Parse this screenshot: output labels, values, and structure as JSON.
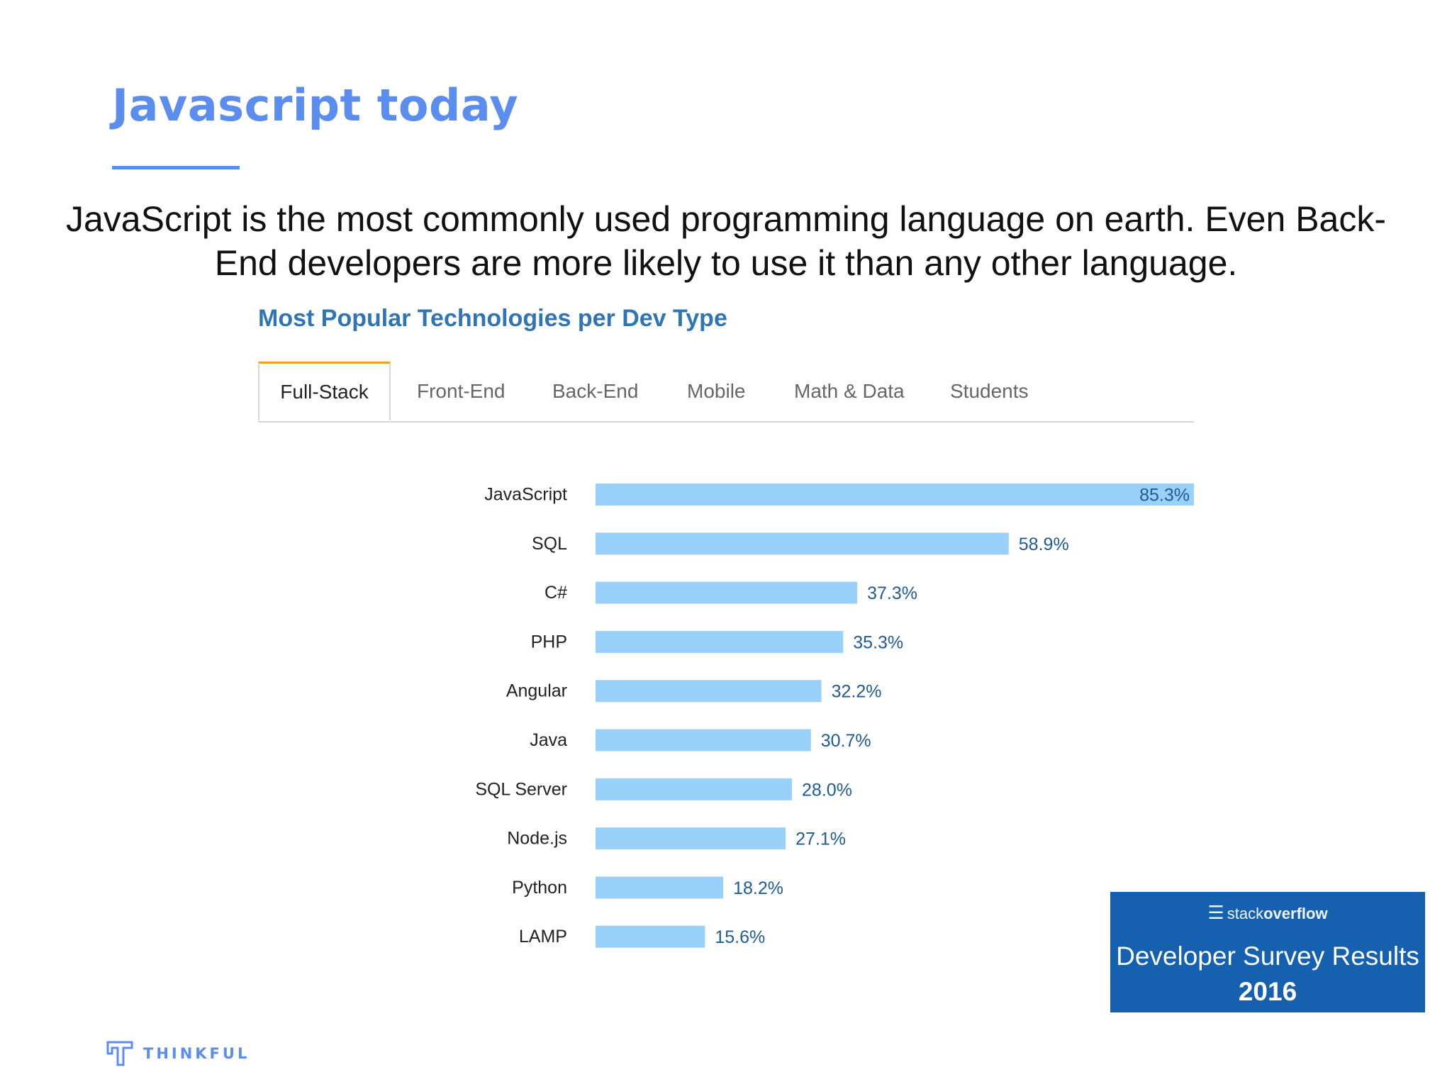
{
  "slide": {
    "title": "Javascript today",
    "lead_line1": "JavaScript is the most commonly used programming language on earth. Even Back-",
    "lead_line2": "End developers are more likely to use it than any other language."
  },
  "chart_panel": {
    "heading": "Most Popular Technologies per Dev Type",
    "tabs": [
      {
        "label": "Full-Stack",
        "active": true
      },
      {
        "label": "Front-End",
        "active": false
      },
      {
        "label": "Back-End",
        "active": false
      },
      {
        "label": "Mobile",
        "active": false
      },
      {
        "label": "Math & Data",
        "active": false
      },
      {
        "label": "Students",
        "active": false
      }
    ]
  },
  "chart_data": {
    "type": "bar",
    "orientation": "horizontal",
    "categories": [
      "JavaScript",
      "SQL",
      "C#",
      "PHP",
      "Angular",
      "Java",
      "SQL Server",
      "Node.js",
      "Python",
      "LAMP"
    ],
    "values": [
      85.3,
      58.9,
      37.3,
      35.3,
      32.2,
      30.7,
      28.0,
      27.1,
      18.2,
      15.6
    ],
    "value_labels": [
      "85.3%",
      "58.9%",
      "37.3%",
      "35.3%",
      "32.2%",
      "30.7%",
      "28.0%",
      "27.1%",
      "18.2%",
      "15.6%"
    ],
    "title": "",
    "xlabel": "",
    "ylabel": "",
    "xlim": [
      0,
      85.3
    ],
    "grid": false,
    "bar_color": "#99d1fb",
    "label_color": "#1f5b96"
  },
  "badge": {
    "logo_light": "stack",
    "logo_bold": "overflow",
    "title": "Developer Survey Results",
    "year": "2016",
    "color": "#1660b0"
  },
  "brand": {
    "name": "THINKFUL",
    "icon": "thinkful-logo-icon",
    "color": "#5b8def"
  }
}
